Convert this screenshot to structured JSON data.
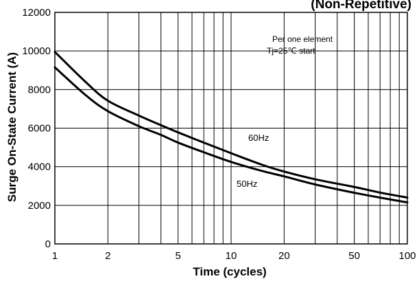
{
  "chart_data": {
    "type": "line",
    "title": "(Non-Repetitive)",
    "xlabel": "Time (cycles)",
    "ylabel": "Surge On-State Current (A)",
    "x_scale": "log",
    "xlim": [
      1,
      100
    ],
    "ylim": [
      0,
      12000
    ],
    "x_ticks": [
      "1",
      "2",
      "5",
      "10",
      "20",
      "50",
      "100"
    ],
    "y_ticks": [
      "0",
      "2000",
      "4000",
      "6000",
      "8000",
      "10000",
      "12000"
    ],
    "grid": true,
    "annotations": [
      "Per one element",
      "Tj=25℃ start"
    ],
    "series": [
      {
        "name": "60Hz",
        "x": [
          1,
          1.5,
          2,
          3,
          4,
          5,
          7,
          10,
          15,
          20,
          30,
          50,
          70,
          100
        ],
        "y": [
          9950,
          8380,
          7420,
          6650,
          6150,
          5780,
          5250,
          4700,
          4100,
          3750,
          3350,
          2950,
          2660,
          2400
        ]
      },
      {
        "name": "50Hz",
        "x": [
          1,
          1.5,
          2,
          3,
          4,
          5,
          7,
          10,
          15,
          20,
          30,
          50,
          70,
          100
        ],
        "y": [
          9150,
          7700,
          6880,
          6100,
          5650,
          5250,
          4750,
          4250,
          3780,
          3500,
          3080,
          2650,
          2400,
          2150
        ]
      }
    ]
  }
}
